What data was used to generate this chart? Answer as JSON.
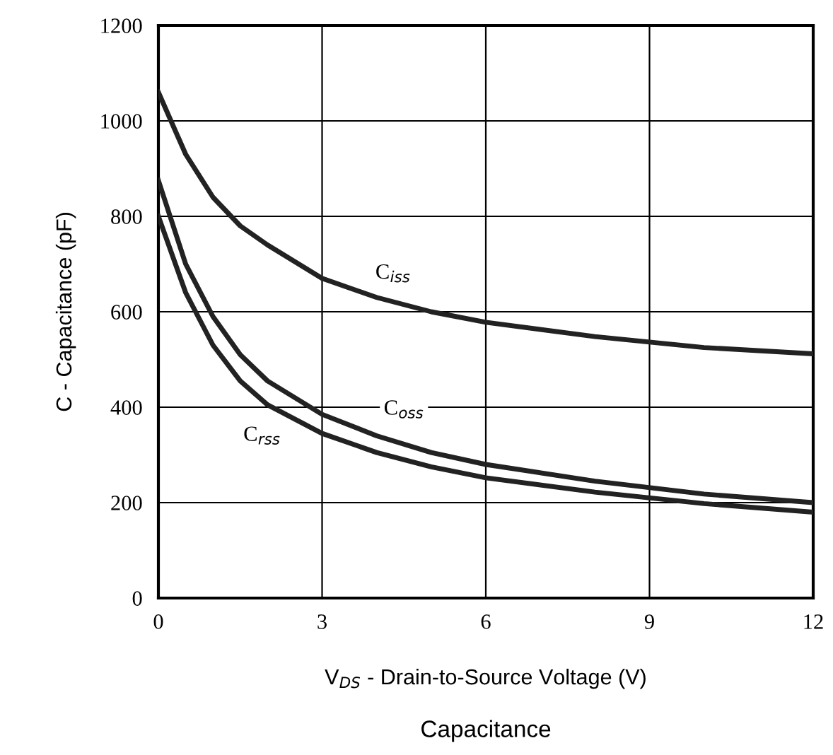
{
  "chart_data": {
    "type": "line",
    "title": "Capacitance",
    "xlabel": "V$_{DS}$ - Drain-to-Source Voltage (V)",
    "ylabel": "C - Capacitance (pF)",
    "x": [
      0,
      0.5,
      1,
      1.5,
      2,
      3,
      4,
      5,
      6,
      8,
      10,
      12
    ],
    "series": [
      {
        "color": "#222222",
        "values": [
          1060,
          930,
          840,
          780,
          740,
          670,
          630,
          600,
          578,
          548,
          525,
          512
        ]
      },
      {
        "color": "#222222",
        "values": [
          875,
          700,
          590,
          510,
          455,
          385,
          340,
          305,
          280,
          245,
          218,
          200
        ]
      },
      {
        "color": "#222222",
        "values": [
          800,
          640,
          530,
          455,
          405,
          345,
          305,
          275,
          252,
          222,
          198,
          180
        ]
      }
    ],
    "annotations": [
      {
        "text": "C$_{iss}$",
        "x": 4.3,
        "y": 680
      },
      {
        "text": "C$_{oss}$",
        "x": 4.5,
        "y": 395
      },
      {
        "text": "C$_{rss}$",
        "x": 1.9,
        "y": 340
      }
    ],
    "xlim": [
      0,
      12
    ],
    "xticks": [
      0,
      3,
      6,
      9,
      12
    ],
    "ylim": [
      0,
      1200
    ],
    "yticks": [
      0,
      200,
      400,
      600,
      800,
      1000,
      1200
    ],
    "grid": true,
    "marker": "none",
    "line_style": "solid"
  }
}
